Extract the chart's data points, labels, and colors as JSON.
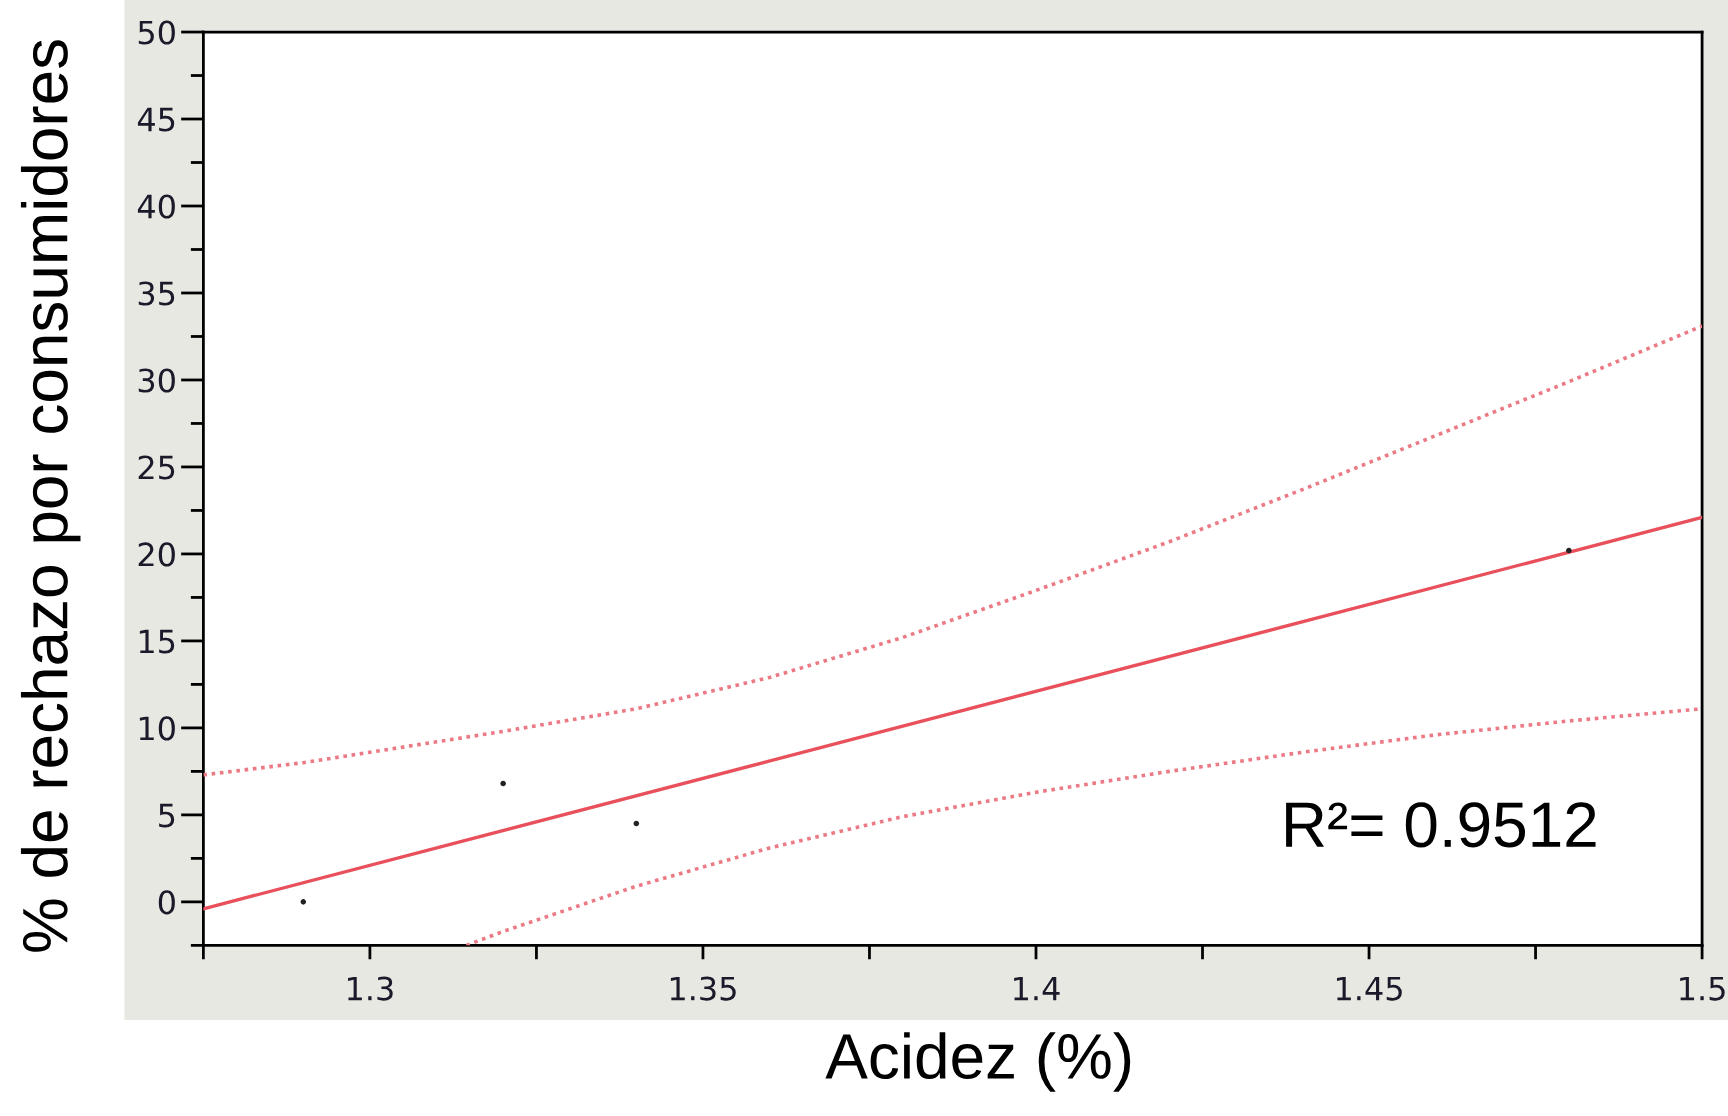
{
  "chart_data": {
    "type": "scatter",
    "xlabel": "Acidez (%)",
    "ylabel": "% de rechazo por consumidores",
    "annotations": [
      "R²= 0.9512"
    ],
    "xlim": [
      1.275,
      1.5
    ],
    "ylim": [
      -2.5,
      50
    ],
    "xticks": [
      {
        "value": 1.275,
        "label": null
      },
      1.3,
      {
        "value": 1.325,
        "label": null
      },
      1.35,
      {
        "value": 1.375,
        "label": null
      },
      1.4,
      {
        "value": 1.425,
        "label": null
      },
      1.45,
      {
        "value": 1.475,
        "label": null
      },
      1.5
    ],
    "yticks": [
      {
        "value": -2.5,
        "label": null
      },
      0,
      {
        "value": 2.5,
        "label": null
      },
      5,
      {
        "value": 7.5,
        "label": null
      },
      10,
      {
        "value": 12.5,
        "label": null
      },
      15,
      {
        "value": 17.5,
        "label": null
      },
      20,
      {
        "value": 22.5,
        "label": null
      },
      25,
      {
        "value": 27.5,
        "label": null
      },
      30,
      {
        "value": 32.5,
        "label": null
      },
      35,
      {
        "value": 37.5,
        "label": null
      },
      40,
      {
        "value": 42.5,
        "label": null
      },
      45,
      {
        "value": 47.5,
        "label": null
      },
      50
    ],
    "grid": false,
    "series": [
      {
        "x": [
          1.29,
          1.32,
          1.34,
          1.48
        ],
        "values": [
          0,
          6.8,
          4.5,
          20.2
        ],
        "color": "#222222",
        "marker": "circle"
      },
      {
        "type": "line",
        "x": [
          1.275,
          1.5
        ],
        "values": [
          -0.4,
          22.1
        ],
        "color": "#e8505c",
        "line_style": "solid"
      },
      {
        "type": "line",
        "x": [
          1.275,
          1.29,
          1.3,
          1.32,
          1.34,
          1.36,
          1.38,
          1.4,
          1.42,
          1.44,
          1.46,
          1.48,
          1.5
        ],
        "values": [
          7.3,
          8.0,
          8.6,
          9.8,
          11.1,
          12.9,
          15.2,
          17.9,
          20.7,
          23.7,
          26.8,
          29.9,
          33.1
        ],
        "color": "#ec7a85",
        "line_style": "dotted"
      },
      {
        "type": "line",
        "x": [
          1.3145,
          1.32,
          1.34,
          1.36,
          1.38,
          1.4,
          1.42,
          1.44,
          1.46,
          1.48,
          1.5
        ],
        "values": [
          -2.5,
          -1.7,
          0.9,
          3.1,
          4.9,
          6.3,
          7.5,
          8.6,
          9.6,
          10.4,
          11.1
        ],
        "color": "#ec7a85",
        "line_style": "dotted"
      }
    ]
  }
}
